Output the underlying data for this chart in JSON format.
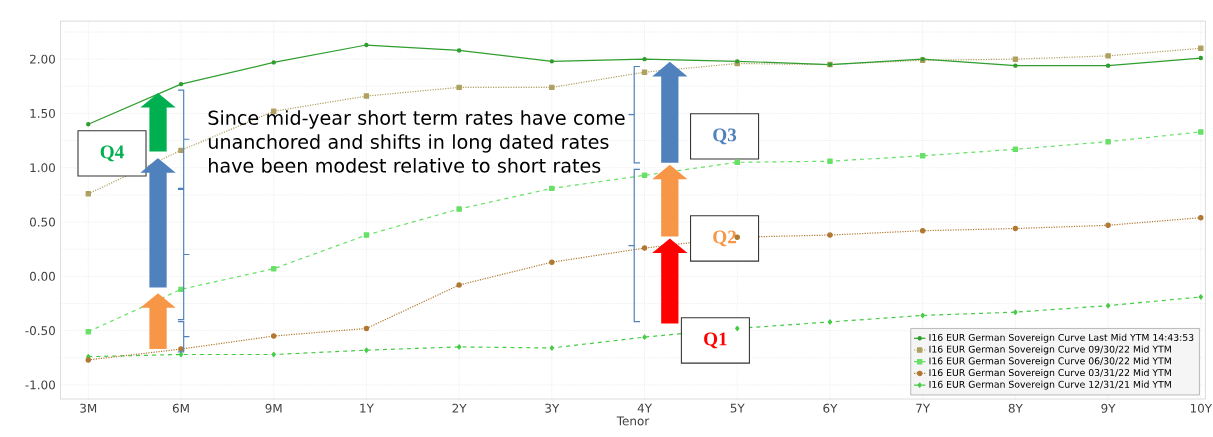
{
  "chart_data": {
    "type": "line",
    "xlabel": "Tenor",
    "categories": [
      "3M",
      "6M",
      "9M",
      "1Y",
      "2Y",
      "3Y",
      "4Y",
      "5Y",
      "6Y",
      "7Y",
      "8Y",
      "9Y",
      "10Y"
    ],
    "series": [
      {
        "name": "I16 EUR German Sovereign Curve Last Mid YTM 14:43:53",
        "color": "#2e9e2e",
        "marker": "circle",
        "line_style": "solid",
        "values": [
          1.4,
          1.77,
          1.97,
          2.13,
          2.08,
          1.98,
          2.0,
          1.98,
          1.95,
          2.0,
          1.94,
          1.94,
          2.01
        ]
      },
      {
        "name": "I16 EUR German Sovereign Curve 09/30/22 Mid YTM",
        "color": "#b0a060",
        "marker": "square",
        "line_style": "dotted",
        "values": [
          0.76,
          1.16,
          1.52,
          1.66,
          1.74,
          1.74,
          1.88,
          1.96,
          1.95,
          1.99,
          2.0,
          2.03,
          2.1
        ]
      },
      {
        "name": "I16 EUR German Sovereign Curve 06/30/22 Mid YTM",
        "color": "#66e066",
        "marker": "square",
        "line_style": "dashed",
        "values": [
          -0.51,
          -0.12,
          0.07,
          0.38,
          0.62,
          0.81,
          0.93,
          1.05,
          1.06,
          1.11,
          1.17,
          1.24,
          1.33
        ]
      },
      {
        "name": "I16 EUR German Sovereign Curve 03/31/22 Mid YTM",
        "color": "#b07830",
        "marker": "circle",
        "line_style": "dotted",
        "values": [
          -0.77,
          -0.67,
          -0.55,
          -0.48,
          -0.08,
          0.13,
          0.26,
          0.36,
          0.38,
          0.42,
          0.44,
          0.47,
          0.54
        ]
      },
      {
        "name": "I16 EUR German Sovereign Curve 12/31/21 Mid YTM",
        "color": "#44cc44",
        "marker": "diamond",
        "line_style": "dashed",
        "values": [
          -0.74,
          -0.72,
          -0.72,
          -0.68,
          -0.65,
          -0.66,
          -0.56,
          -0.48,
          -0.42,
          -0.36,
          -0.33,
          -0.27,
          -0.19
        ]
      }
    ],
    "ylim": [
      -1.13,
      2.35
    ],
    "yticks": [
      {
        "value": -1.0,
        "label": "-1.00"
      },
      {
        "value": -0.75,
        "label": null
      },
      {
        "value": -0.5,
        "label": "-0.50"
      },
      {
        "value": -0.25,
        "label": null
      },
      {
        "value": 0.0,
        "label": "0.00"
      },
      {
        "value": 0.25,
        "label": null
      },
      {
        "value": 0.5,
        "label": "0.50"
      },
      {
        "value": 0.75,
        "label": null
      },
      {
        "value": 1.0,
        "label": "1.00"
      },
      {
        "value": 1.25,
        "label": null
      },
      {
        "value": 1.5,
        "label": "1.50"
      },
      {
        "value": 1.75,
        "label": null
      },
      {
        "value": 2.0,
        "label": "2.00"
      },
      {
        "value": 2.25,
        "label": null
      }
    ],
    "grid": true,
    "legend": "bottom right",
    "annotations": [
      "Since mid-year short term rates have come unanchored and shifts in long dated rates have been modest relative to short rates",
      "Q4",
      "Q3",
      "Q2",
      "Q1"
    ]
  }
}
